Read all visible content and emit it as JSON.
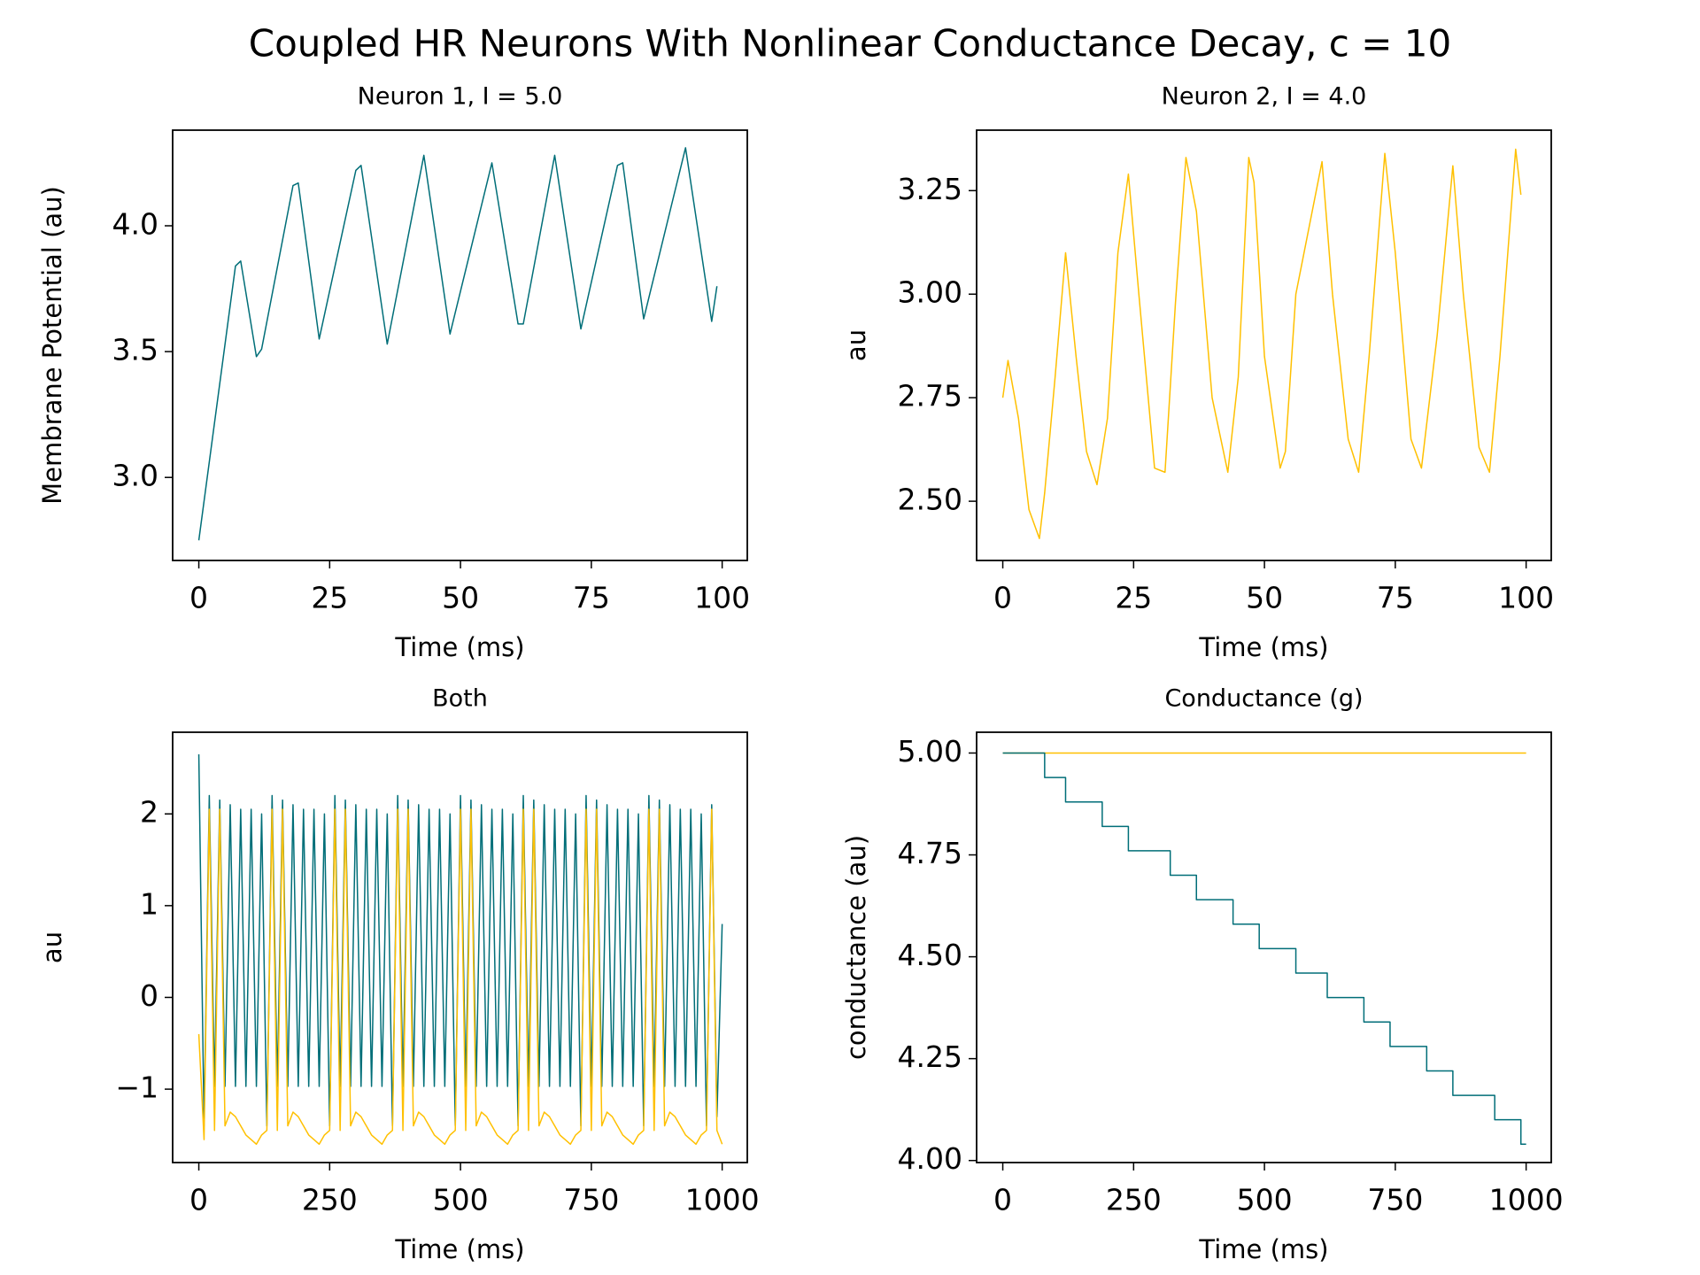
{
  "title": "Coupled HR Neurons With Nonlinear Conductance Decay, c = 10",
  "chart_data": [
    {
      "type": "line",
      "title": "Neuron 1, I = 5.0",
      "xlabel": "Time (ms)",
      "ylabel": "Membrane Potential (au)",
      "xlim": [
        -5,
        104.8
      ],
      "ylim": [
        2.67,
        4.38
      ],
      "xticks": [
        0,
        25,
        50,
        75,
        100
      ],
      "yticks": [
        {
          "value": 3,
          "label": "3.0"
        },
        {
          "value": 3.5,
          "label": "3.5"
        },
        {
          "value": 4,
          "label": "4.0"
        }
      ],
      "series": [
        {
          "color": "#006e78",
          "x": [
            0,
            7,
            8,
            11,
            12,
            18,
            19,
            23,
            30,
            31,
            36,
            43,
            48,
            56,
            61,
            62,
            68,
            73,
            80,
            81,
            85,
            93,
            98,
            99
          ],
          "values": [
            2.75,
            3.84,
            3.86,
            3.48,
            3.51,
            4.16,
            4.17,
            3.55,
            4.22,
            4.24,
            3.53,
            4.28,
            3.57,
            4.25,
            3.61,
            3.61,
            4.28,
            3.59,
            4.24,
            4.25,
            3.63,
            4.31,
            3.62,
            3.76
          ]
        }
      ]
    },
    {
      "type": "line",
      "title": "Neuron 2, I = 4.0",
      "xlabel": "Time (ms)",
      "ylabel": "au",
      "xlim": [
        -5,
        104.8
      ],
      "ylim": [
        2.357,
        3.396
      ],
      "xticks": [
        0,
        25,
        50,
        75,
        100
      ],
      "yticks": [
        {
          "value": 2.5,
          "label": "2.50"
        },
        2.75,
        {
          "value": 3,
          "label": "3.00"
        },
        3.25
      ],
      "series": [
        {
          "color": "#ffc000",
          "x": [
            0,
            1,
            3,
            5,
            7,
            8,
            10,
            12,
            14,
            16,
            18,
            20,
            22,
            24,
            26,
            29,
            31,
            33,
            35,
            37,
            40,
            43,
            45,
            47,
            48,
            50,
            53,
            54,
            56,
            61,
            63,
            66,
            68,
            70,
            73,
            75,
            78,
            80,
            83,
            86,
            88,
            91,
            93,
            95,
            98,
            99
          ],
          "values": [
            2.75,
            2.84,
            2.7,
            2.48,
            2.41,
            2.52,
            2.8,
            3.1,
            2.85,
            2.62,
            2.54,
            2.7,
            3.1,
            3.29,
            3.0,
            2.58,
            2.57,
            2.98,
            3.33,
            3.2,
            2.75,
            2.57,
            2.8,
            3.33,
            3.27,
            2.85,
            2.58,
            2.62,
            3.0,
            3.32,
            3.0,
            2.65,
            2.57,
            2.85,
            3.34,
            3.1,
            2.65,
            2.58,
            2.9,
            3.31,
            3.0,
            2.63,
            2.57,
            2.85,
            3.35,
            3.24
          ]
        }
      ]
    },
    {
      "type": "line",
      "title": "Both",
      "xlabel": "Time (ms)",
      "ylabel": "au",
      "xlim": [
        -50,
        1048
      ],
      "ylim": [
        -1.8,
        2.89
      ],
      "xticks": [
        0,
        250,
        500,
        750,
        1000
      ],
      "yticks": [
        {
          "value": -1,
          "label": "−1"
        },
        0,
        1,
        2
      ],
      "series": [
        {
          "color": "#006e78",
          "x": [
            0,
            10,
            20,
            30,
            40,
            50,
            60,
            70,
            80,
            90,
            100,
            110,
            120,
            130,
            140,
            150,
            160,
            170,
            180,
            190,
            200,
            210,
            220,
            230,
            240,
            250,
            260,
            270,
            280,
            290,
            300,
            310,
            320,
            330,
            340,
            350,
            360,
            370,
            380,
            390,
            400,
            410,
            420,
            430,
            440,
            450,
            460,
            470,
            480,
            490,
            500,
            510,
            520,
            530,
            540,
            550,
            560,
            570,
            580,
            590,
            600,
            610,
            620,
            630,
            640,
            650,
            660,
            670,
            680,
            690,
            700,
            710,
            720,
            730,
            740,
            750,
            760,
            770,
            780,
            790,
            800,
            810,
            820,
            830,
            840,
            850,
            860,
            870,
            880,
            890,
            900,
            910,
            920,
            930,
            940,
            950,
            960,
            970,
            980,
            990,
            1000
          ],
          "values": [
            2.65,
            -1.4,
            2.2,
            -0.97,
            2.15,
            -0.97,
            2.1,
            -0.97,
            2.05,
            -0.97,
            2.05,
            -0.97,
            2.0,
            -1.4,
            2.2,
            -0.97,
            2.15,
            -0.97,
            2.1,
            -0.97,
            2.05,
            -0.97,
            2.05,
            -0.97,
            2.0,
            -1.4,
            2.2,
            -0.97,
            2.15,
            -0.97,
            2.1,
            -0.97,
            2.05,
            -0.97,
            2.05,
            -0.97,
            2.0,
            -1.4,
            2.2,
            -0.97,
            2.15,
            -0.97,
            2.1,
            -0.97,
            2.05,
            -0.97,
            2.05,
            -0.97,
            2.0,
            -1.4,
            2.2,
            -0.97,
            2.15,
            -0.97,
            2.1,
            -0.97,
            2.05,
            -0.97,
            2.05,
            -0.97,
            2.0,
            -1.4,
            2.2,
            -0.97,
            2.15,
            -0.97,
            2.1,
            -0.97,
            2.05,
            -0.97,
            2.05,
            -0.97,
            2.0,
            -1.4,
            2.2,
            -0.97,
            2.15,
            -0.97,
            2.1,
            -0.97,
            2.05,
            -0.97,
            2.05,
            -0.97,
            2.0,
            -1.4,
            2.2,
            -0.97,
            2.15,
            -0.97,
            2.1,
            -0.97,
            2.05,
            -0.97,
            2.05,
            -0.97,
            2.0,
            -1.4,
            2.1,
            -1.3,
            0.8
          ]
        },
        {
          "color": "#ffc000",
          "x": [
            0,
            10,
            20,
            30,
            40,
            50,
            60,
            70,
            80,
            90,
            100,
            110,
            120,
            130,
            140,
            150,
            160,
            170,
            180,
            190,
            200,
            210,
            220,
            230,
            240,
            250,
            260,
            270,
            280,
            290,
            300,
            310,
            320,
            330,
            340,
            350,
            360,
            370,
            380,
            390,
            400,
            410,
            420,
            430,
            440,
            450,
            460,
            470,
            480,
            490,
            500,
            510,
            520,
            530,
            540,
            550,
            560,
            570,
            580,
            590,
            600,
            610,
            620,
            630,
            640,
            650,
            660,
            670,
            680,
            690,
            700,
            710,
            720,
            730,
            740,
            750,
            760,
            770,
            780,
            790,
            800,
            810,
            820,
            830,
            840,
            850,
            860,
            870,
            880,
            890,
            900,
            910,
            920,
            930,
            940,
            950,
            960,
            970,
            980,
            990,
            1000
          ],
          "values": [
            -0.4,
            -1.55,
            2.05,
            -1.45,
            2.05,
            -1.4,
            -1.25,
            -1.3,
            -1.4,
            -1.5,
            -1.55,
            -1.6,
            -1.5,
            -1.45,
            2.05,
            -1.45,
            2.05,
            -1.4,
            -1.25,
            -1.3,
            -1.4,
            -1.5,
            -1.55,
            -1.6,
            -1.5,
            -1.45,
            2.05,
            -1.45,
            2.05,
            -1.4,
            -1.25,
            -1.3,
            -1.4,
            -1.5,
            -1.55,
            -1.6,
            -1.5,
            -1.45,
            2.05,
            -1.45,
            2.05,
            -1.4,
            -1.25,
            -1.3,
            -1.4,
            -1.5,
            -1.55,
            -1.6,
            -1.5,
            -1.45,
            2.05,
            -1.45,
            2.05,
            -1.4,
            -1.25,
            -1.3,
            -1.4,
            -1.5,
            -1.55,
            -1.6,
            -1.5,
            -1.45,
            2.05,
            -1.45,
            2.05,
            -1.4,
            -1.25,
            -1.3,
            -1.4,
            -1.5,
            -1.55,
            -1.6,
            -1.5,
            -1.45,
            2.05,
            -1.45,
            2.05,
            -1.4,
            -1.25,
            -1.3,
            -1.4,
            -1.5,
            -1.55,
            -1.6,
            -1.5,
            -1.45,
            2.05,
            -1.45,
            2.05,
            -1.4,
            -1.25,
            -1.3,
            -1.4,
            -1.5,
            -1.55,
            -1.6,
            -1.5,
            -1.45,
            2.05,
            -1.45,
            -1.6
          ]
        }
      ]
    },
    {
      "type": "line",
      "title": "Conductance (g)",
      "xlabel": "Time (ms)",
      "ylabel": "conductance (au)",
      "xlim": [
        -50,
        1048
      ],
      "ylim": [
        3.995,
        5.051
      ],
      "xticks": [
        0,
        250,
        500,
        750,
        1000
      ],
      "yticks": [
        {
          "value": 4,
          "label": "4.00"
        },
        4.25,
        {
          "value": 4.5,
          "label": "4.50"
        },
        4.75,
        {
          "value": 5,
          "label": "5.00"
        }
      ],
      "drawstyle": "steps-post",
      "series": [
        {
          "color": "#ffc000",
          "x": [
            0,
            1000
          ],
          "values": [
            5,
            5
          ]
        },
        {
          "color": "#006e78",
          "x": [
            0,
            80,
            120,
            190,
            240,
            320,
            370,
            440,
            490,
            560,
            620,
            690,
            740,
            810,
            860,
            940,
            990,
            1000
          ],
          "values": [
            5,
            4.94,
            4.88,
            4.82,
            4.76,
            4.7,
            4.64,
            4.58,
            4.52,
            4.46,
            4.4,
            4.34,
            4.28,
            4.22,
            4.16,
            4.1,
            4.04,
            4.04
          ]
        }
      ]
    }
  ]
}
